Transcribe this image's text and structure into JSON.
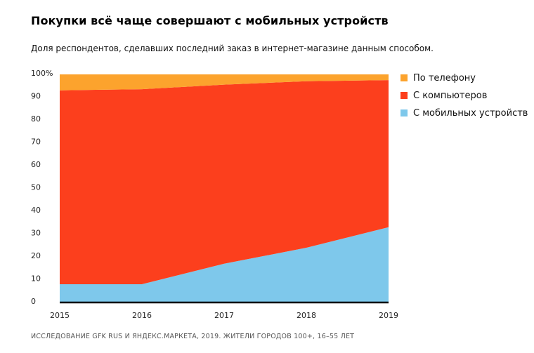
{
  "chart_data": {
    "type": "area",
    "stacked": true,
    "title": "Покупки всё чаще совершают с мобильных устройств",
    "subtitle": "Доля респондентов, сделавших последний заказ в  интернет-магазине данным способом.",
    "source": "ИССЛЕДОВАНИЕ GFK RUS И ЯНДЕКС.МАРКЕТА, 2019. ЖИТЕЛИ ГОРОДОВ 100+, 16–55 ЛЕТ",
    "x": [
      "2015",
      "2016",
      "2017",
      "2018",
      "2019"
    ],
    "ylim": [
      0,
      100
    ],
    "yticks": [
      "100%",
      "90",
      "80",
      "70",
      "60",
      "50",
      "40",
      "30",
      "20",
      "10",
      "0"
    ],
    "ytick_values": [
      100,
      90,
      80,
      70,
      60,
      50,
      40,
      30,
      20,
      10,
      0
    ],
    "legend_position": "right",
    "series": [
      {
        "name": "С мобильных устройств",
        "color": "#7ec8eb",
        "values": [
          8,
          8,
          17,
          24,
          33
        ]
      },
      {
        "name": "С компьютеров",
        "color": "#fc3f1d",
        "values": [
          85,
          85.5,
          78.5,
          73,
          64.5
        ]
      },
      {
        "name": "По телефону",
        "color": "#fca32d",
        "values": [
          7,
          6.5,
          4.5,
          3,
          2.5
        ]
      }
    ],
    "legend_order": [
      2,
      1,
      0
    ]
  }
}
